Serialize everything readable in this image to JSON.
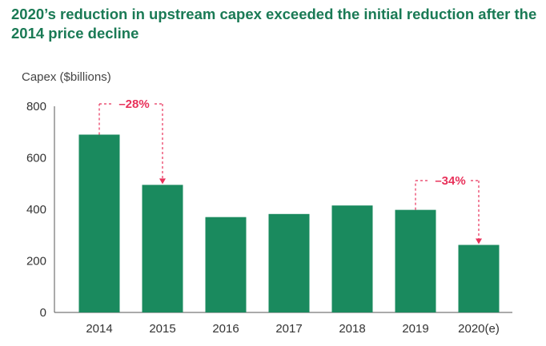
{
  "title": "2020’s reduction in upstream capex exceeded the initial reduction after the 2014 price decline",
  "chart_data": {
    "type": "bar",
    "title": "2020’s reduction in upstream capex exceeded the initial reduction after the 2014 price decline",
    "ylabel": "Capex ($billions)",
    "xlabel": "",
    "categories": [
      "2014",
      "2015",
      "2016",
      "2017",
      "2018",
      "2019",
      "2020(e)"
    ],
    "values": [
      690,
      495,
      370,
      382,
      415,
      398,
      262
    ],
    "ylim": [
      0,
      800
    ],
    "yticks": [
      0,
      200,
      400,
      600,
      800
    ],
    "grid": false,
    "bar_color": "#1a8a5e",
    "annotations": [
      {
        "text": "–28%",
        "from": "2014",
        "to": "2015",
        "color": "#e8315a"
      },
      {
        "text": "–34%",
        "from": "2019",
        "to": "2020(e)",
        "color": "#e8315a"
      }
    ]
  }
}
